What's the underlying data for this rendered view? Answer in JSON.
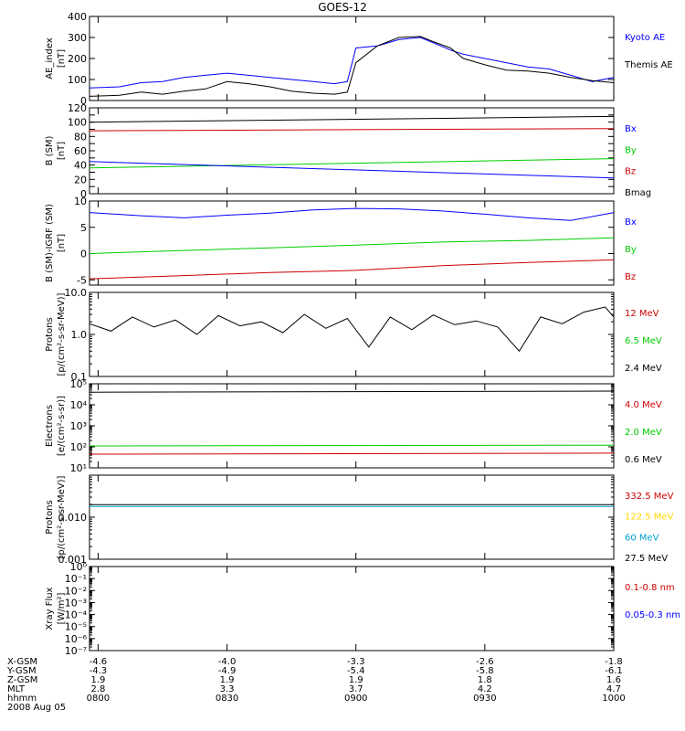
{
  "title": "GOES-12",
  "chart_data": [
    {
      "id": "ae",
      "type": "line",
      "ylabel": [
        "AE_index",
        "[nT]"
      ],
      "ylim": [
        0,
        400
      ],
      "log": false,
      "ticks": [
        0,
        100,
        200,
        300,
        400
      ],
      "tick_labels": [
        "0",
        "100",
        "200",
        "300",
        "400"
      ],
      "legend": [
        {
          "label": "Kyoto AE",
          "color": "#0000ff"
        },
        {
          "label": "Themis AE",
          "color": "#000000"
        }
      ],
      "series": [
        {
          "name": "Kyoto AE",
          "color": "#0000ff",
          "x": [
            "07:58",
            "08:05",
            "08:10",
            "08:15",
            "08:20",
            "08:25",
            "08:30",
            "08:35",
            "08:40",
            "08:45",
            "08:50",
            "08:55",
            "08:58",
            "09:00",
            "09:05",
            "09:10",
            "09:15",
            "09:18",
            "09:22",
            "09:25",
            "09:30",
            "09:35",
            "09:40",
            "09:45",
            "09:50",
            "09:55",
            "10:00"
          ],
          "y": [
            60,
            65,
            85,
            90,
            110,
            120,
            130,
            120,
            110,
            100,
            90,
            80,
            90,
            250,
            260,
            290,
            300,
            275,
            240,
            220,
            200,
            180,
            160,
            150,
            120,
            90,
            110
          ]
        },
        {
          "name": "Themis AE",
          "color": "#000000",
          "x": [
            "07:58",
            "08:05",
            "08:10",
            "08:15",
            "08:20",
            "08:25",
            "08:30",
            "08:35",
            "08:40",
            "08:45",
            "08:50",
            "08:55",
            "08:58",
            "09:00",
            "09:05",
            "09:10",
            "09:15",
            "09:18",
            "09:22",
            "09:25",
            "09:30",
            "09:35",
            "09:40",
            "09:45",
            "09:50",
            "09:55",
            "10:00"
          ],
          "y": [
            20,
            25,
            40,
            30,
            45,
            55,
            90,
            80,
            65,
            45,
            35,
            30,
            40,
            180,
            260,
            300,
            305,
            280,
            250,
            200,
            170,
            145,
            140,
            130,
            110,
            95,
            85
          ]
        }
      ]
    },
    {
      "id": "bsm",
      "type": "line",
      "ylabel": [
        "B (SM)",
        "[nT]"
      ],
      "ylim": [
        0,
        120
      ],
      "log": false,
      "ticks": [
        0,
        10,
        20,
        30,
        40,
        50,
        60,
        70,
        80,
        90,
        100,
        110,
        120
      ],
      "tick_labels": [
        "0",
        "",
        "20",
        "",
        "40",
        "",
        "60",
        "",
        "80",
        "",
        "100",
        "",
        "120"
      ],
      "legend": [
        {
          "label": "Bx",
          "color": "#0000ff"
        },
        {
          "label": "By",
          "color": "#00cc00"
        },
        {
          "label": "Bz",
          "color": "#cc0000"
        },
        {
          "label": "Bmag",
          "color": "#000000"
        }
      ],
      "series": [
        {
          "name": "Bmag",
          "color": "#000000",
          "x": [
            "07:58",
            "10:00"
          ],
          "y": [
            100,
            108
          ]
        },
        {
          "name": "Bz",
          "color": "#cc0000",
          "x": [
            "07:58",
            "10:00"
          ],
          "y": [
            88,
            91
          ]
        },
        {
          "name": "By",
          "color": "#00cc00",
          "x": [
            "07:58",
            "10:00"
          ],
          "y": [
            36,
            49
          ]
        },
        {
          "name": "Bx",
          "color": "#0000ff",
          "x": [
            "07:58",
            "10:00"
          ],
          "y": [
            45,
            22
          ]
        }
      ]
    },
    {
      "id": "bigrf",
      "type": "line",
      "ylabel": [
        "B (SM)-IGRF (SM)",
        "[nT]"
      ],
      "ylim": [
        -6,
        10
      ],
      "log": false,
      "ticks": [
        -5,
        0,
        5,
        10
      ],
      "tick_labels": [
        "-5",
        "0",
        "5",
        "10"
      ],
      "legend": [
        {
          "label": "Bx",
          "color": "#0000ff"
        },
        {
          "label": "By",
          "color": "#00cc00"
        },
        {
          "label": "Bz",
          "color": "#cc0000"
        }
      ],
      "series": [
        {
          "name": "Bx",
          "color": "#0000ff",
          "x": [
            "07:58",
            "08:10",
            "08:20",
            "08:30",
            "08:40",
            "08:50",
            "09:00",
            "09:10",
            "09:20",
            "09:30",
            "09:40",
            "09:50",
            "10:00"
          ],
          "y": [
            7.8,
            7.2,
            6.8,
            7.3,
            7.7,
            8.3,
            8.6,
            8.5,
            8.1,
            7.5,
            6.8,
            6.3,
            7.8
          ]
        },
        {
          "name": "By",
          "color": "#00cc00",
          "x": [
            "07:58",
            "08:20",
            "08:40",
            "09:00",
            "09:20",
            "09:40",
            "10:00"
          ],
          "y": [
            0,
            0.6,
            1.1,
            1.6,
            2.2,
            2.5,
            3.0
          ]
        },
        {
          "name": "Bz",
          "color": "#cc0000",
          "x": [
            "07:58",
            "08:20",
            "08:40",
            "09:00",
            "09:20",
            "09:40",
            "10:00"
          ],
          "y": [
            -4.8,
            -4.2,
            -3.6,
            -3.2,
            -2.3,
            -1.7,
            -1.2
          ]
        }
      ]
    },
    {
      "id": "protons_hi",
      "type": "line",
      "ylabel": [
        "Protons",
        "[p/(cm²-s-sr-MeV)]"
      ],
      "ylim": [
        0.1,
        10
      ],
      "log": true,
      "ticks": [
        0.1,
        1,
        10
      ],
      "tick_labels": [
        "0.1",
        "1.0",
        "10.0"
      ],
      "legend": [
        {
          "label": "12 MeV",
          "color": "#cc0000"
        },
        {
          "label": "6.5 MeV",
          "color": "#00cc00"
        },
        {
          "label": "2.4 MeV",
          "color": "#000000"
        }
      ],
      "series": [
        {
          "name": "2.4 MeV",
          "color": "#000000",
          "x": [
            "07:58",
            "08:03",
            "08:08",
            "08:13",
            "08:18",
            "08:23",
            "08:28",
            "08:33",
            "08:38",
            "08:43",
            "08:48",
            "08:53",
            "08:58",
            "09:03",
            "09:08",
            "09:13",
            "09:18",
            "09:23",
            "09:28",
            "09:33",
            "09:38",
            "09:43",
            "09:48",
            "09:53",
            "09:58",
            "10:00"
          ],
          "y": [
            1.8,
            1.2,
            2.6,
            1.5,
            2.2,
            1.0,
            2.8,
            1.6,
            2.0,
            1.1,
            3.0,
            1.4,
            2.4,
            0.5,
            2.6,
            1.3,
            2.9,
            1.7,
            2.1,
            1.5,
            0.4,
            2.6,
            1.8,
            3.4,
            4.5,
            2.6
          ]
        }
      ]
    },
    {
      "id": "electrons",
      "type": "line",
      "ylabel": [
        "Electrons",
        "[e/(cm²-s-sr)]"
      ],
      "ylim": [
        10,
        100000
      ],
      "log": true,
      "ticks": [
        10,
        100,
        1000,
        10000,
        100000
      ],
      "tick_labels": [
        "10¹",
        "10²",
        "10³",
        "10⁴",
        "10⁵"
      ],
      "legend": [
        {
          "label": "4.0 MeV",
          "color": "#cc0000"
        },
        {
          "label": "2.0 MeV",
          "color": "#00cc00"
        },
        {
          "label": "0.6 MeV",
          "color": "#000000"
        }
      ],
      "series": [
        {
          "name": "0.6 MeV",
          "color": "#000000",
          "x": [
            "07:58",
            "10:00"
          ],
          "y": [
            40000,
            45000
          ]
        },
        {
          "name": "2.0 MeV",
          "color": "#00cc00",
          "x": [
            "07:58",
            "10:00"
          ],
          "y": [
            110,
            120
          ]
        },
        {
          "name": "4.0 MeV",
          "color": "#cc0000",
          "x": [
            "07:58",
            "10:00"
          ],
          "y": [
            45,
            50
          ]
        }
      ]
    },
    {
      "id": "protons_lo",
      "type": "line",
      "ylabel": [
        "Protons",
        "[p/(cm²-s-sr-MeV)]"
      ],
      "ylim": [
        0.001,
        0.1
      ],
      "log": true,
      "ticks": [
        0.001,
        0.01,
        0.1
      ],
      "tick_labels": [
        "0.001",
        "0.010",
        ""
      ],
      "legend": [
        {
          "label": "332.5 MeV",
          "color": "#cc0000"
        },
        {
          "label": "122.5 MeV",
          "color": "#ffd700"
        },
        {
          "label": "60 MeV",
          "color": "#00a0d0"
        },
        {
          "label": "27.5 MeV",
          "color": "#000000"
        }
      ],
      "series": [
        {
          "name": "27.5 MeV",
          "color": "#000000",
          "x": [
            "07:58",
            "10:00"
          ],
          "y": [
            0.02,
            0.02
          ]
        },
        {
          "name": "60 MeV",
          "color": "#00a0d0",
          "x": [
            "07:58",
            "10:00"
          ],
          "y": [
            0.018,
            0.018
          ]
        }
      ]
    },
    {
      "id": "xray",
      "type": "line",
      "ylabel": [
        "Xray Flux",
        "[W/m²]"
      ],
      "ylim": [
        1e-07,
        1
      ],
      "log": true,
      "ticks": [
        1e-07,
        1e-06,
        1e-05,
        0.0001,
        0.001,
        0.01,
        0.1,
        1
      ],
      "tick_labels": [
        "10⁻⁷",
        "10⁻⁶",
        "10⁻⁵",
        "10⁻⁴",
        "10⁻³",
        "10⁻²",
        "10⁻¹",
        "10⁰"
      ],
      "legend": [
        {
          "label": "0.1-0.8 nm",
          "color": "#cc0000"
        },
        {
          "label": "0.05-0.3 nm",
          "color": "#0000ff"
        }
      ],
      "series": []
    }
  ],
  "x_axis": {
    "range": [
      "07:58",
      "10:00"
    ],
    "tick_times": [
      "08:00",
      "08:30",
      "09:00",
      "09:30",
      "10:00"
    ],
    "rows": [
      {
        "label": "X-GSM",
        "values": [
          "-4.6",
          "-4.0",
          "-3.3",
          "-2.6",
          "-1.8"
        ]
      },
      {
        "label": "Y-GSM",
        "values": [
          "-4.3",
          "-4.9",
          "-5.4",
          "-5.8",
          "-6.1"
        ]
      },
      {
        "label": "Z-GSM",
        "values": [
          "1.9",
          "1.9",
          "1.9",
          "1.8",
          "1.6"
        ]
      },
      {
        "label": "MLT",
        "values": [
          "2.8",
          "3.3",
          "3.7",
          "4.2",
          "4.7"
        ]
      },
      {
        "label": "hhmm",
        "values": [
          "0800",
          "0830",
          "0900",
          "0930",
          "1000"
        ]
      }
    ],
    "date": "2008 Aug 05"
  }
}
